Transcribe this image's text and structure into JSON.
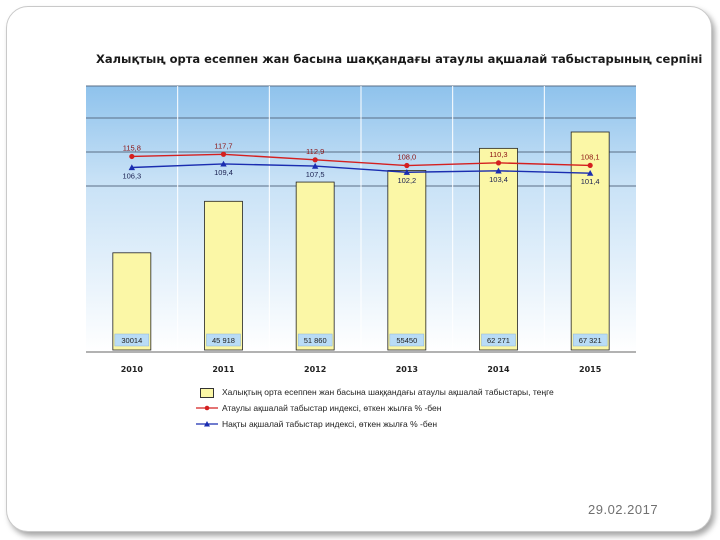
{
  "slide": {
    "date": "29.02.2017"
  },
  "chart_data": {
    "type": "bar",
    "title": "Халықтың орта есеппен жан басына шаққандағы атаулы ақшалай табыстарының серпіні",
    "categories": [
      "2010",
      "2011",
      "2012",
      "2013",
      "2014",
      "2015"
    ],
    "series": [
      {
        "name": "Халықтың орта есеппен жан басына шаққандағы атаулы ақшалай табыстары, теңге",
        "kind": "bar",
        "values": [
          30014,
          45918,
          51860,
          55450,
          62271,
          67321
        ],
        "labels": [
          "30014",
          "45 918",
          "51 860",
          "55450",
          "62 271",
          "67 321"
        ]
      },
      {
        "name": "Атаулы ақшалай табыстар индексі, өткен жылға % -бен",
        "kind": "line",
        "color": "#d42020",
        "values": [
          115.8,
          117.7,
          112.9,
          108.0,
          110.3,
          108.1
        ],
        "labels": [
          "115,8",
          "117,7",
          "112,9",
          "108,0",
          "110,3",
          "108,1"
        ]
      },
      {
        "name": "Нақты ақшалай табыстар индексі, өткен жылға % -бен",
        "kind": "line",
        "color": "#1a2db0",
        "values": [
          106.3,
          109.4,
          107.5,
          102.2,
          103.4,
          101.4
        ],
        "labels": [
          "106,3",
          "109,4",
          "107,5",
          "102,2",
          "103,4",
          "101,4"
        ]
      }
    ],
    "background": "blue-gradient",
    "grid": true,
    "legend_position": "bottom",
    "colors": {
      "bar_fill": "#fbf7a6",
      "bar_label_box": "#b9dcf6",
      "gradient_top": "#8ec2ec",
      "gradient_bottom": "#ffffff"
    }
  }
}
